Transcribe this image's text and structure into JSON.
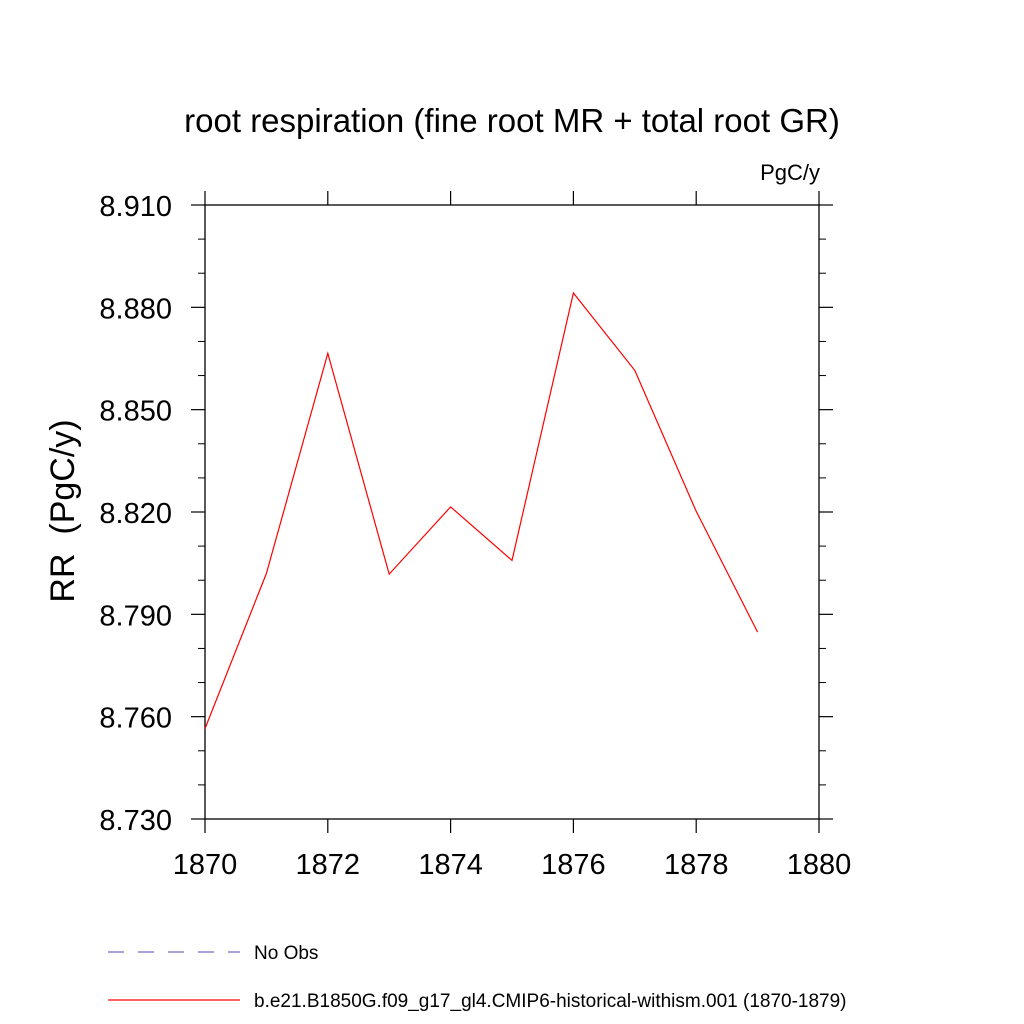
{
  "chart_data": {
    "type": "line",
    "title": "root respiration (fine root MR + total root GR)",
    "units_label": "PgC/y",
    "ylabel": "RR  (PgC/y)",
    "xlabel": "",
    "xlim": [
      1870,
      1880
    ],
    "ylim": [
      8.73,
      8.91
    ],
    "x_ticks": [
      1870,
      1872,
      1874,
      1876,
      1878,
      1880
    ],
    "x_tick_labels": [
      "1870",
      "1872",
      "1874",
      "1876",
      "1878",
      "1880"
    ],
    "y_ticks": [
      8.73,
      8.76,
      8.79,
      8.82,
      8.85,
      8.88,
      8.91
    ],
    "y_tick_labels": [
      "8.730",
      "8.760",
      "8.790",
      "8.820",
      "8.850",
      "8.880",
      "8.910"
    ],
    "grid": false,
    "legend_position": "bottom",
    "series": [
      {
        "name": "No Obs",
        "color": "#7b68c8",
        "style": "dashed",
        "x": [],
        "y": []
      },
      {
        "name": "b.e21.B1850G.f09_g17_gl4.CMIP6-historical-withism.001 (1870-1879)",
        "color": "#ff0000",
        "style": "solid",
        "x": [
          1870,
          1871,
          1872,
          1873,
          1874,
          1875,
          1876,
          1877,
          1878,
          1879
        ],
        "y": [
          8.7565,
          8.802,
          8.8665,
          8.8018,
          8.8215,
          8.8058,
          8.8842,
          8.8615,
          8.8202,
          8.7848
        ]
      }
    ]
  }
}
